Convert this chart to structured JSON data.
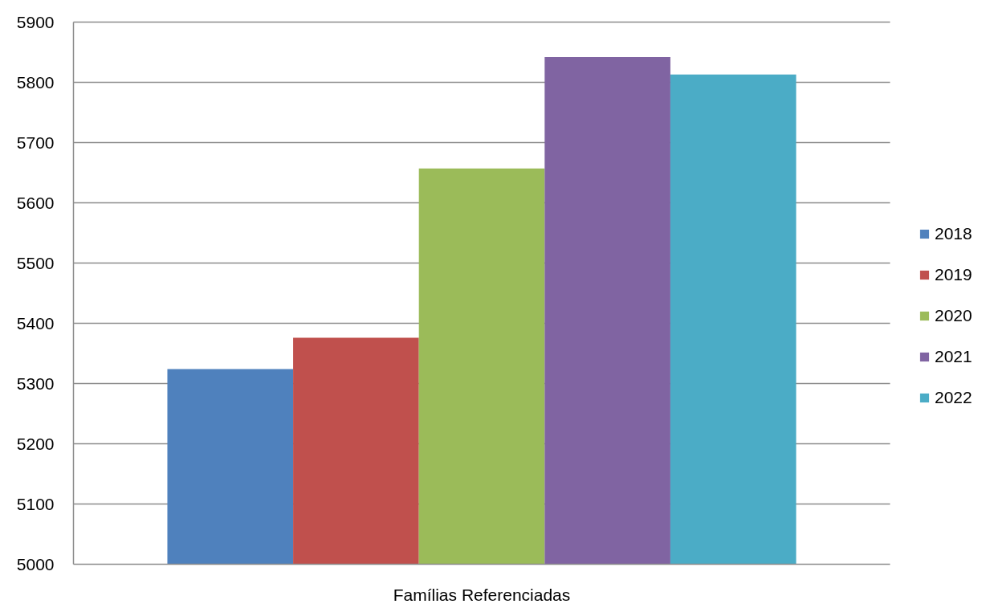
{
  "chart_data": {
    "type": "bar",
    "categories": [
      "Famílias Referenciadas"
    ],
    "series": [
      {
        "name": "2018",
        "color": "#4f81bd",
        "values": [
          5324
        ]
      },
      {
        "name": "2019",
        "color": "#c0504d",
        "values": [
          5376
        ]
      },
      {
        "name": "2020",
        "color": "#9bbb59",
        "values": [
          5657
        ]
      },
      {
        "name": "2021",
        "color": "#8064a2",
        "values": [
          5842
        ]
      },
      {
        "name": "2022",
        "color": "#4bacc6",
        "values": [
          5813
        ]
      }
    ],
    "ylim": [
      5000,
      5900
    ],
    "yticks": [
      5000,
      5100,
      5200,
      5300,
      5400,
      5500,
      5600,
      5700,
      5800,
      5900
    ],
    "grid": "y",
    "legend": "right"
  }
}
